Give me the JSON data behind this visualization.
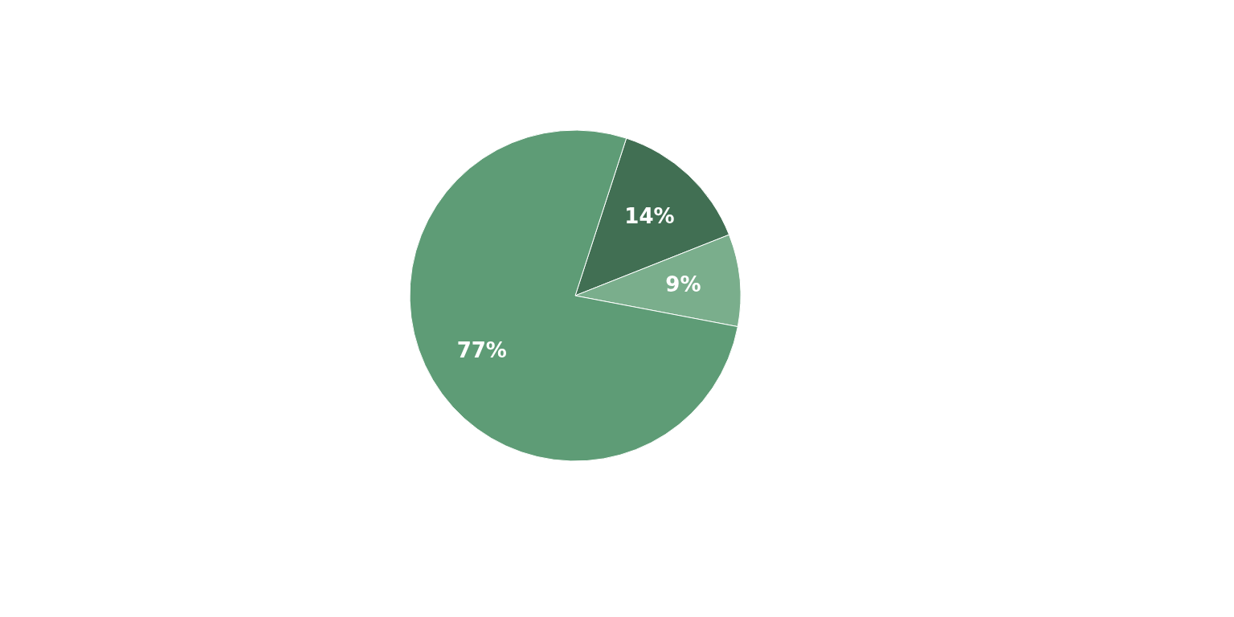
{
  "chart_data": {
    "type": "pie",
    "categories": [
      null,
      null,
      null
    ],
    "values": [
      14,
      9,
      77
    ],
    "colors": [
      "#416f53",
      "#7aae8c",
      "#5e9c76"
    ],
    "value_labels": [
      "14%",
      "9%",
      "77%"
    ]
  }
}
